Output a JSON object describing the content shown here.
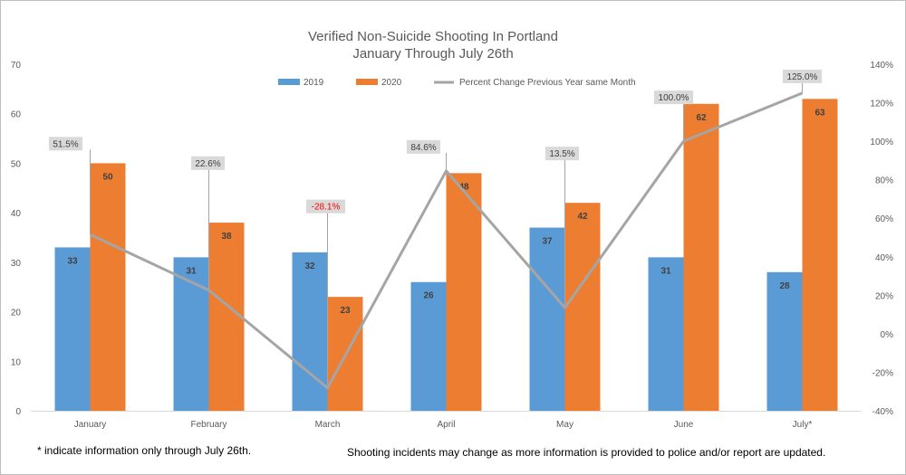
{
  "chart_data": {
    "type": "bar",
    "title_lines": [
      "Verified Non-Suicide Shooting In Portland",
      "January Through July 26th"
    ],
    "categories": [
      "January",
      "February",
      "March",
      "April",
      "May",
      "June",
      "July*"
    ],
    "series": [
      {
        "name": "2019",
        "kind": "bar",
        "axis": "left",
        "color": "#5b9bd5",
        "values": [
          33,
          31,
          32,
          26,
          37,
          31,
          28
        ],
        "labels": [
          "33",
          "31",
          "32",
          "26",
          "37",
          "31",
          "28"
        ]
      },
      {
        "name": "2020",
        "kind": "bar",
        "axis": "left",
        "color": "#ed7d31",
        "values": [
          50,
          38,
          23,
          48,
          42,
          62,
          63
        ],
        "labels": [
          "50",
          "38",
          "23",
          "48",
          "42",
          "62",
          "63"
        ]
      },
      {
        "name": "Percent Change Previous Year same Month",
        "kind": "line",
        "axis": "right",
        "color": "#a5a5a5",
        "values": [
          51.5,
          22.6,
          -28.1,
          84.6,
          13.5,
          100.0,
          125.0
        ],
        "labels": [
          "51.5%",
          "22.6%",
          "-28.1%",
          "84.6%",
          "13.5%",
          "100.0%",
          "125.0%"
        ]
      }
    ],
    "negative_label_color": "#ff0000",
    "y_left": {
      "min": 0,
      "max": 70,
      "step": 10,
      "ticks": [
        "0",
        "10",
        "20",
        "30",
        "40",
        "50",
        "60",
        "70"
      ]
    },
    "y_right": {
      "min": -40,
      "max": 140,
      "step": 20,
      "ticks": [
        "-40%",
        "-20%",
        "0%",
        "20%",
        "40%",
        "60%",
        "80%",
        "100%",
        "120%",
        "140%"
      ]
    },
    "grid": false,
    "legend_position": "top"
  },
  "footnotes": {
    "left": "* indicate information only through July 26th.",
    "right": "Shooting incidents may change as more information is provided to police and/or report are updated."
  }
}
